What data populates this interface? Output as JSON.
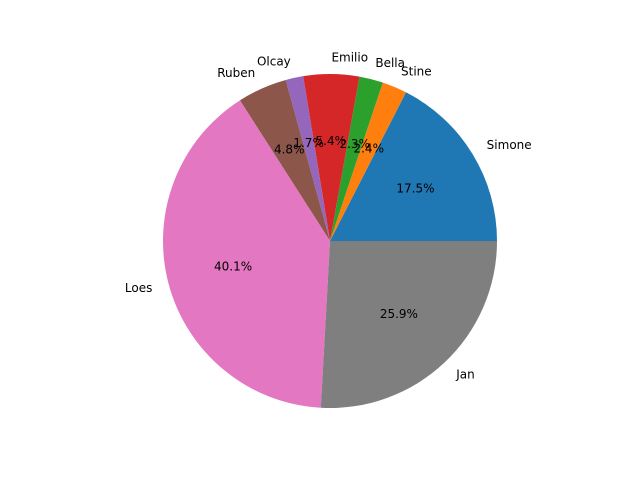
{
  "chart_data": {
    "type": "pie",
    "labels": [
      "Simone",
      "Stine",
      "Bella",
      "Emilio",
      "Olcay",
      "Ruben",
      "Loes",
      "Jan"
    ],
    "values": [
      17.5,
      2.4,
      2.3,
      5.4,
      1.7,
      4.8,
      40.1,
      25.9
    ],
    "percent_labels": [
      "17.5%",
      "2.4%",
      "2.3%",
      "5.4%",
      "1.7%",
      "4.8%",
      "40.1%",
      "25.9%"
    ],
    "colors": [
      "#1f77b4",
      "#ff7f0e",
      "#2ca02c",
      "#d62728",
      "#9467bd",
      "#8c564b",
      "#e377c2",
      "#7f7f7f"
    ],
    "start_angle_deg": 0,
    "direction": "counterclockwise",
    "legend": "none"
  }
}
